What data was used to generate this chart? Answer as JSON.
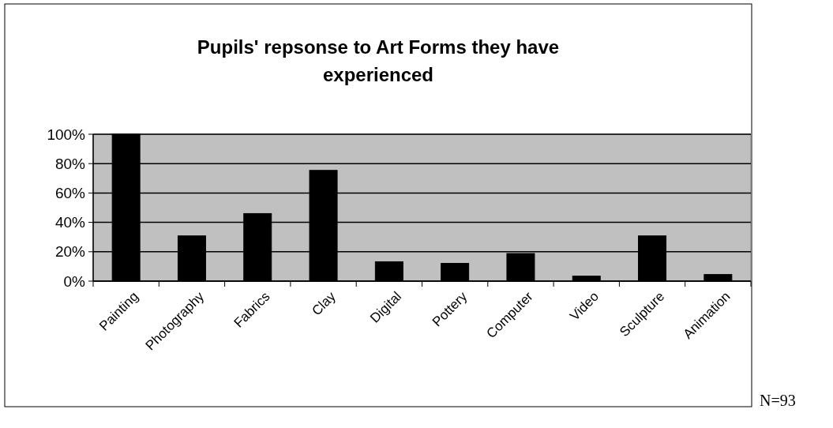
{
  "chart_data": {
    "type": "bar",
    "title": "Pupils' repsonse to Art Forms they have experienced",
    "categories": [
      "Painting",
      "Photography",
      "Fabrics",
      "Clay",
      "Digital",
      "Pottery",
      "Computer",
      "Video",
      "Sculpture",
      "Animation"
    ],
    "values": [
      100,
      30.8,
      46,
      75.4,
      13.2,
      12.1,
      18.8,
      3.4,
      30.8,
      4.5
    ],
    "color": "#000000",
    "ylim": [
      0,
      100
    ],
    "yticks": [
      {
        "value": 0,
        "label": "0%"
      },
      {
        "value": 20,
        "label": "20%"
      },
      {
        "value": 40,
        "label": "40%"
      },
      {
        "value": 60,
        "label": "60%"
      },
      {
        "value": 80,
        "label": "80%"
      },
      {
        "value": 100,
        "label": "100%"
      }
    ],
    "grid": "y",
    "annotations": [
      "N=93"
    ]
  }
}
